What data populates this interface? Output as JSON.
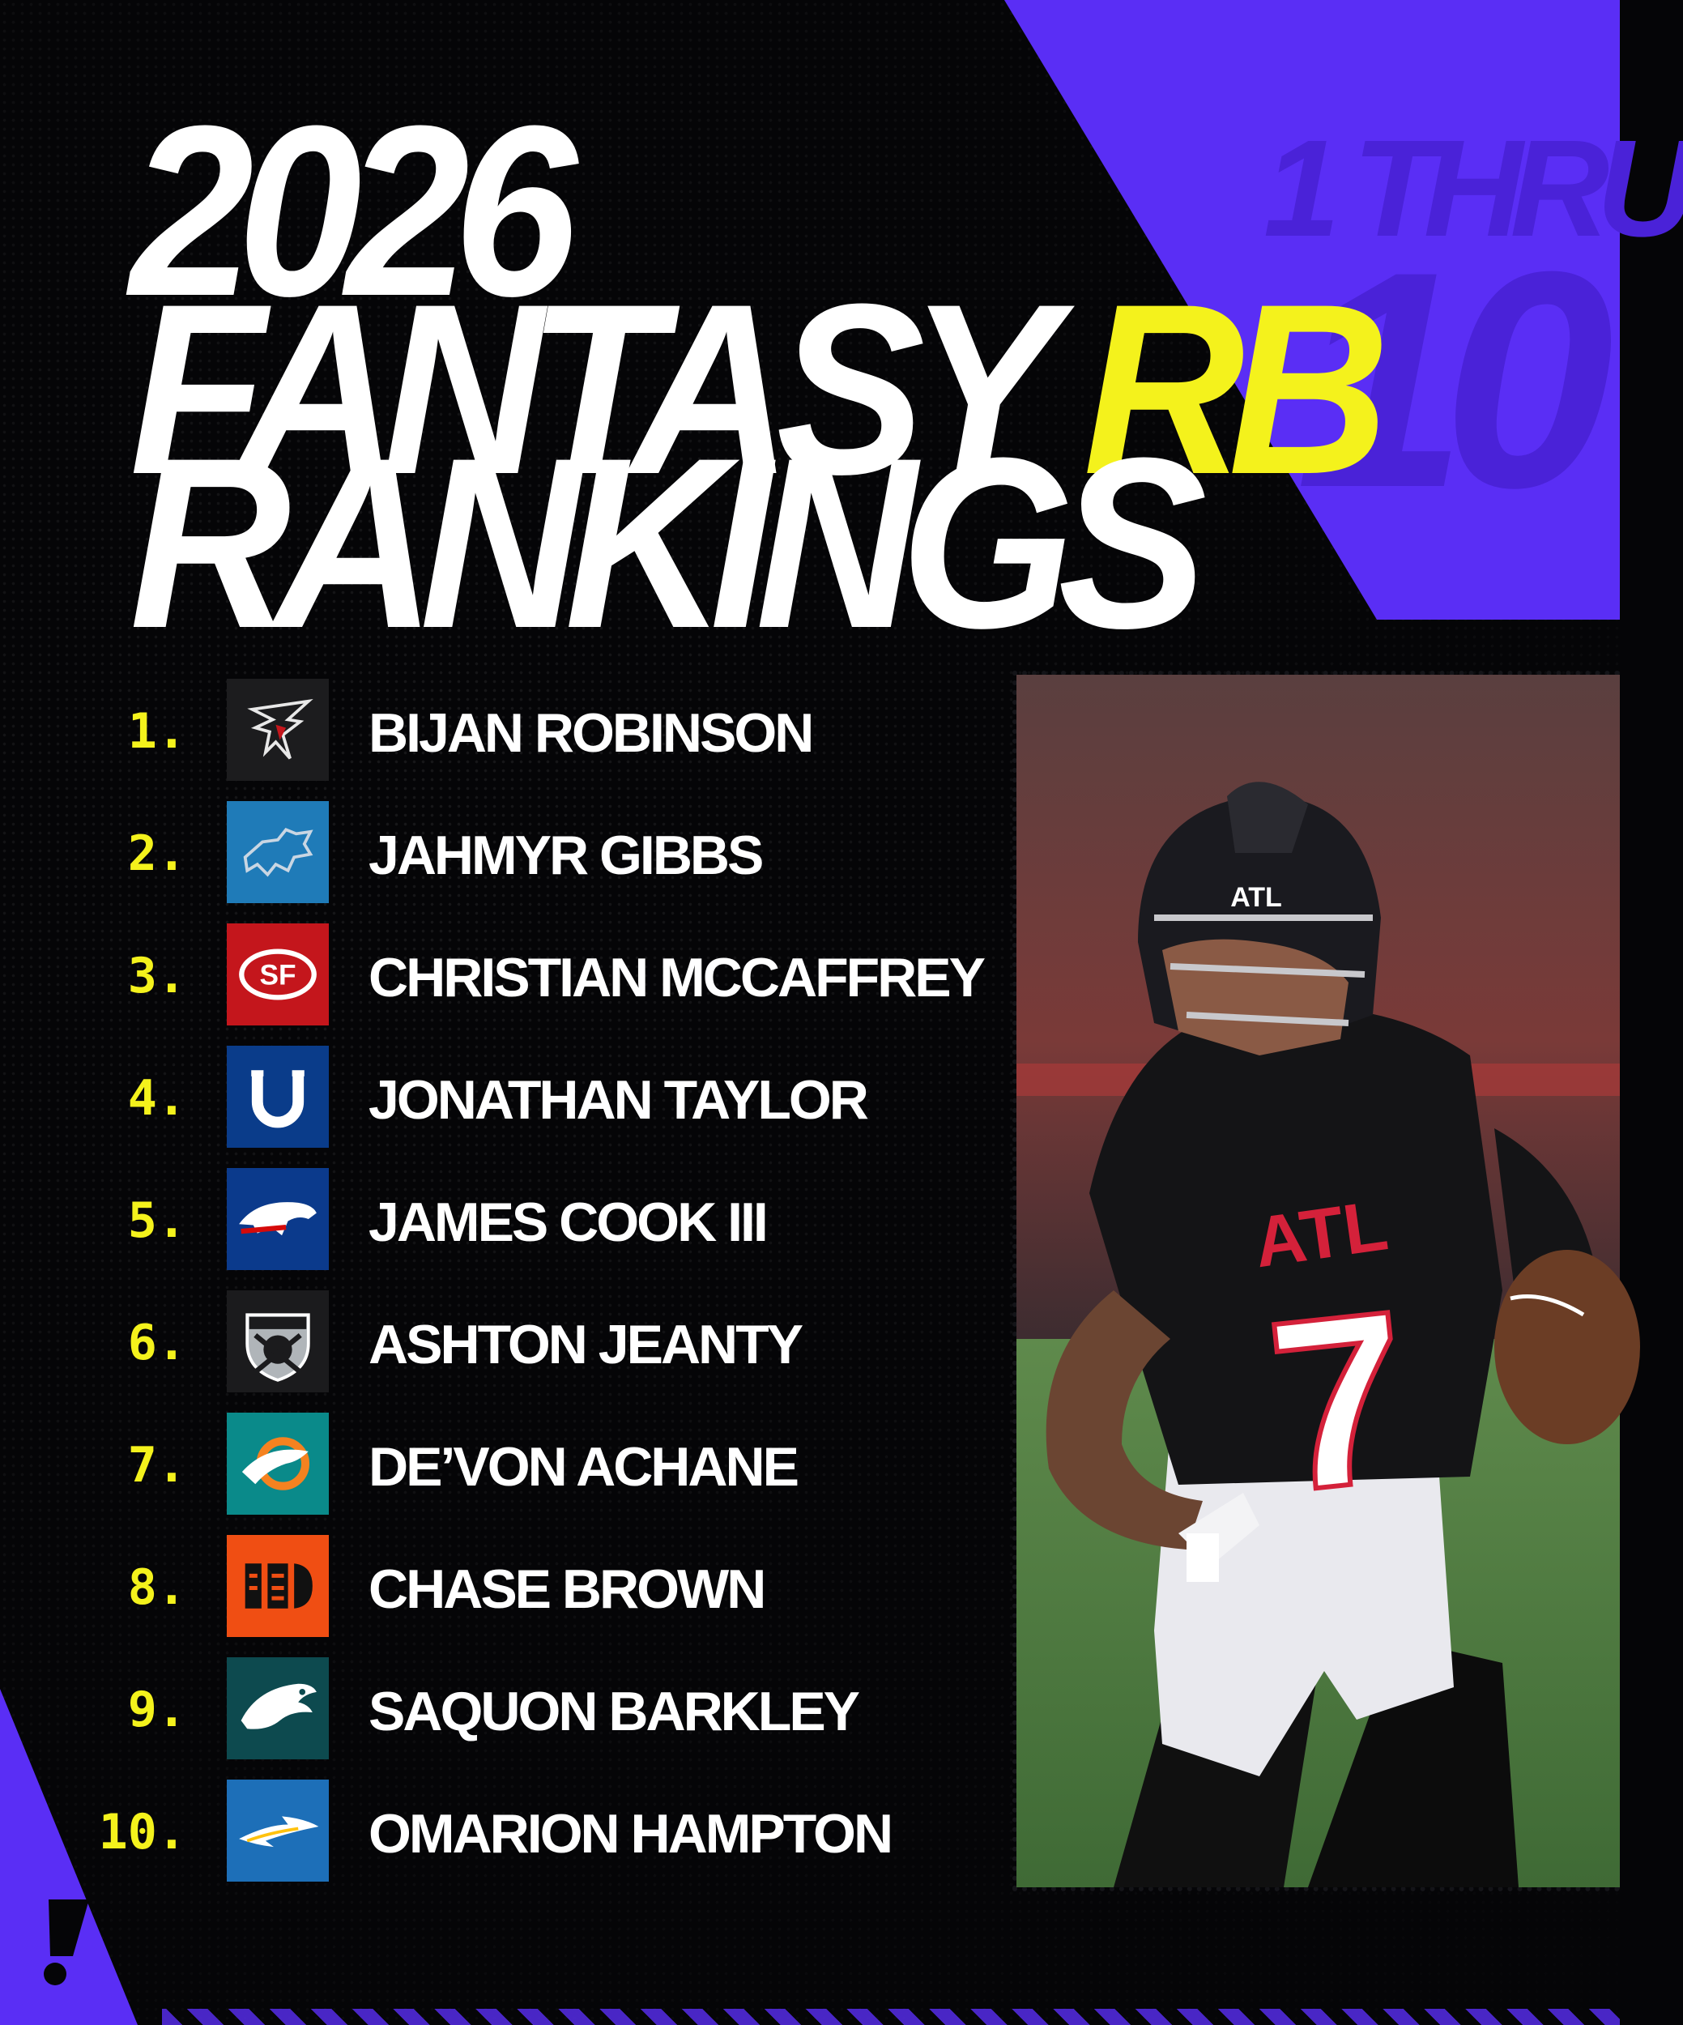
{
  "header": {
    "line1": "2026",
    "line2": "FANTASY",
    "line2_accent": "RB",
    "line3": "RANKINGS"
  },
  "side_label": {
    "top": "1 THRU",
    "bottom": "10"
  },
  "colors": {
    "background": "#050507",
    "purple": "#5a2ef5",
    "accent_yellow": "#f4f21c",
    "text": "#ffffff"
  },
  "rankings": [
    {
      "rank": "1.",
      "player": "BIJAN ROBINSON",
      "team_icon": "falcons-logo-icon",
      "team_color": "#1c1c1e"
    },
    {
      "rank": "2.",
      "player": "JAHMYR GIBBS",
      "team_icon": "lions-logo-icon",
      "team_color": "#1f7bb8"
    },
    {
      "rank": "3.",
      "player": "CHRISTIAN MCCAFFREY",
      "team_icon": "49ers-logo-icon",
      "team_color": "#c4161c"
    },
    {
      "rank": "4.",
      "player": "JONATHAN TAYLOR",
      "team_icon": "colts-logo-icon",
      "team_color": "#0a3c8a"
    },
    {
      "rank": "5.",
      "player": "JAMES COOK III",
      "team_icon": "bills-logo-icon",
      "team_color": "#0b3a8c"
    },
    {
      "rank": "6.",
      "player": "ASHTON JEANTY",
      "team_icon": "raiders-logo-icon",
      "team_color": "#1b1b1d"
    },
    {
      "rank": "7.",
      "player": "DE’VON ACHANE",
      "team_icon": "dolphins-logo-icon",
      "team_color": "#0a8a8a"
    },
    {
      "rank": "8.",
      "player": "CHASE BROWN",
      "team_icon": "bengals-logo-icon",
      "team_color": "#f04e13"
    },
    {
      "rank": "9.",
      "player": "SAQUON BARKLEY",
      "team_icon": "eagles-logo-icon",
      "team_color": "#0d4a4f"
    },
    {
      "rank": "10.",
      "player": "OMARION HAMPTON",
      "team_icon": "chargers-logo-icon",
      "team_color": "#1d6fb8"
    }
  ],
  "photo": {
    "jersey_text": "ATL",
    "jersey_number": "7",
    "helmet_text": "ATL"
  }
}
